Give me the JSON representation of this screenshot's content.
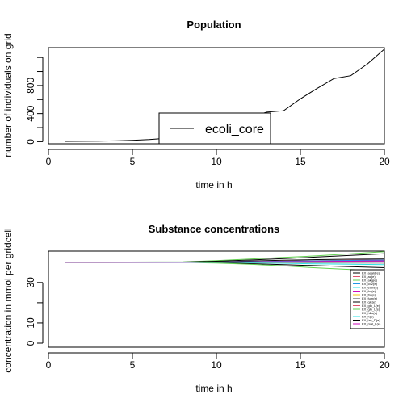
{
  "chart_data": [
    {
      "type": "line",
      "title": "Population",
      "xlabel": "time in h",
      "ylabel": "number of individuals on grid",
      "xlim": [
        0,
        20
      ],
      "ylim": [
        -30,
        1340
      ],
      "x_ticks": [
        0,
        5,
        10,
        15,
        20
      ],
      "y_ticks": [
        0,
        400,
        800
      ],
      "y_ticks_unlabeled": [
        200,
        600,
        1000,
        1200
      ],
      "grid": false,
      "legend": {
        "placement": "bottom-center",
        "entries": [
          "ecoli_core"
        ]
      },
      "series": [
        {
          "name": "ecoli_core",
          "color": "#000000",
          "x": [
            1,
            2,
            3,
            4,
            5,
            6,
            7,
            8,
            9,
            10,
            11,
            12,
            13,
            14,
            15,
            16,
            17,
            18,
            19,
            20
          ],
          "y": [
            5,
            6,
            8,
            12,
            18,
            30,
            48,
            85,
            135,
            200,
            270,
            345,
            420,
            440,
            610,
            760,
            900,
            940,
            1110,
            1320
          ]
        }
      ]
    },
    {
      "type": "line",
      "title": "Substance concentrations",
      "xlabel": "time in h",
      "ylabel": "concentration in mmol per gridcell",
      "xlim": [
        0,
        20
      ],
      "ylim": [
        -2,
        45.5
      ],
      "x_ticks": [
        0,
        5,
        10,
        15,
        20
      ],
      "y_ticks": [
        0,
        10,
        30
      ],
      "y_ticks_unlabeled": [
        20
      ],
      "grid": false,
      "legend": {
        "placement": "right",
        "entries": [
          "EX_acald(e)",
          "EX_ac(e)",
          "EX_akg(e)",
          "EX_co2(e)",
          "EX_etoh(e)",
          "EX_for(e)",
          "EX_fru(e)",
          "EX_fum(e)",
          "EX_glc(e)",
          "EX_gln_L(e)",
          "EX_glu_L(e)",
          "EX_h2o(e)",
          "EX_h(e)",
          "EX_lac_D(e)",
          "EX_mal_L(e)"
        ]
      },
      "series": [
        {
          "color": "#000000",
          "x": [
            1,
            8,
            10,
            12,
            14,
            16,
            18,
            20
          ],
          "y": [
            40,
            40,
            40.2,
            40.6,
            41,
            41.3,
            41.5,
            41.6
          ]
        },
        {
          "color": "#df536b",
          "x": [
            1,
            8,
            10,
            12,
            14,
            16,
            18,
            20
          ],
          "y": [
            40,
            40,
            40.1,
            40.3,
            40.6,
            40.8,
            41,
            41.2
          ]
        },
        {
          "color": "#61d04f",
          "x": [
            1,
            8,
            10,
            12,
            14,
            16,
            18,
            20
          ],
          "y": [
            40,
            40.2,
            40.8,
            41.6,
            42.4,
            43.2,
            44.2,
            45.2
          ]
        },
        {
          "color": "#2297e6",
          "x": [
            1,
            8,
            10,
            12,
            14,
            16,
            18,
            20
          ],
          "y": [
            40,
            40,
            40.1,
            40.2,
            40.4,
            40.5,
            40.6,
            40.7
          ]
        },
        {
          "color": "#28e2e5",
          "x": [
            1,
            8,
            10,
            12,
            14,
            16,
            18,
            20
          ],
          "y": [
            40,
            40,
            39.9,
            39.7,
            39.5,
            39.2,
            39,
            38.8
          ]
        },
        {
          "color": "#cd0bbc",
          "x": [
            1,
            8,
            10,
            12,
            14,
            16,
            18,
            20
          ],
          "y": [
            40,
            40,
            40.1,
            40.2,
            40.4,
            40.5,
            40.7,
            40.8
          ]
        },
        {
          "color": "#f5c710",
          "x": [
            1,
            8,
            10,
            12,
            14,
            16,
            18,
            20
          ],
          "y": [
            40,
            40,
            40,
            40.1,
            40.2,
            40.3,
            40.3,
            40.4
          ]
        },
        {
          "color": "#9e9e9e",
          "x": [
            1,
            8,
            10,
            12,
            14,
            16,
            18,
            20
          ],
          "y": [
            40,
            40,
            40,
            39.9,
            39.8,
            39.7,
            39.6,
            39.5
          ]
        },
        {
          "color": "#000000",
          "x": [
            1,
            8,
            10,
            12,
            14,
            16,
            18,
            20
          ],
          "y": [
            40,
            40,
            39.8,
            39.3,
            38.8,
            38.3,
            37.8,
            37.3
          ]
        },
        {
          "color": "#df536b",
          "x": [
            1,
            8,
            10,
            12,
            14,
            16,
            18,
            20
          ],
          "y": [
            40,
            40,
            40,
            40.1,
            40.1,
            40.2,
            40.2,
            40.3
          ]
        },
        {
          "color": "#61d04f",
          "x": [
            1,
            8,
            10,
            12,
            14,
            16,
            18,
            20
          ],
          "y": [
            40,
            40,
            39.6,
            39,
            38.2,
            37.2,
            36.4,
            35.6
          ]
        },
        {
          "color": "#2297e6",
          "x": [
            1,
            8,
            10,
            12,
            14,
            16,
            18,
            20
          ],
          "y": [
            40,
            40,
            40.1,
            40.3,
            40.5,
            40.7,
            40.9,
            41.1
          ]
        },
        {
          "color": "#28e2e5",
          "x": [
            1,
            8,
            10,
            12,
            14,
            16,
            18,
            20
          ],
          "y": [
            40,
            40,
            40,
            40,
            40.1,
            40.1,
            40.1,
            40.2
          ]
        },
        {
          "color": "#000000",
          "x": [
            1,
            8,
            10,
            12,
            14,
            16,
            18,
            20
          ],
          "y": [
            40,
            40.1,
            40.5,
            41.1,
            41.8,
            42.6,
            43.4,
            44.2
          ]
        },
        {
          "color": "#cd0bbc",
          "x": [
            1,
            8,
            10,
            12,
            14,
            16,
            18,
            20
          ],
          "y": [
            40,
            40,
            40.1,
            40.2,
            40.3,
            40.4,
            40.5,
            40.6
          ]
        }
      ]
    }
  ]
}
